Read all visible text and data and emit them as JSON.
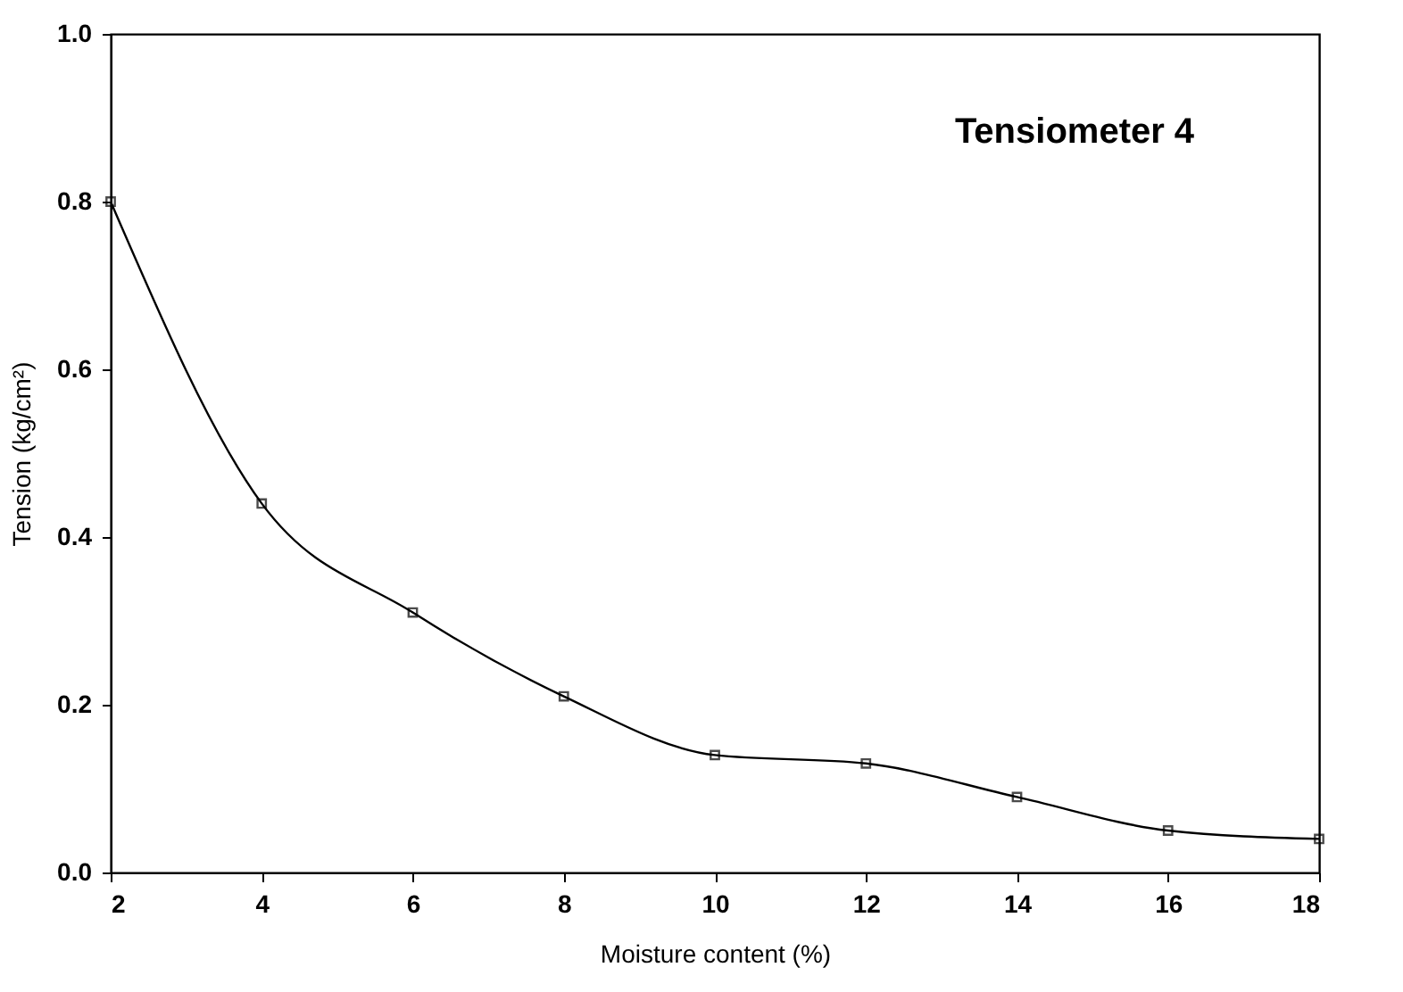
{
  "chart_data": {
    "type": "line",
    "annotations": [
      "Tensiometer 4"
    ],
    "xlabel": "Moisture content (%)",
    "ylabel": "Tension (kg/cm²)",
    "x": [
      2,
      4,
      6,
      8,
      10,
      12,
      14,
      16,
      18
    ],
    "series": [
      {
        "color": "#000000",
        "values": [
          0.8,
          0.44,
          0.31,
          0.21,
          0.14,
          0.13,
          0.09,
          0.05,
          0.04
        ]
      }
    ],
    "xlim": [
      2,
      18
    ],
    "xticks": [
      2,
      4,
      6,
      8,
      10,
      12,
      14,
      16,
      18
    ],
    "ylim": [
      0,
      1.0
    ],
    "yticks": [
      {
        "value": 0,
        "label": "0.0"
      },
      0.2,
      0.4,
      0.6,
      0.8,
      {
        "value": 1.0,
        "label": "1.0"
      }
    ],
    "grid": false,
    "marker": "square",
    "line_style": "solid"
  }
}
